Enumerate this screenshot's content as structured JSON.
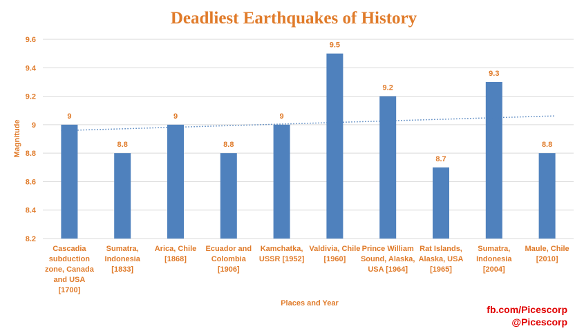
{
  "colors": {
    "accent": "#e07b2a",
    "bar": "#4f81bd",
    "trendline": "#4f81bd",
    "gridline": "#d9d9d9",
    "credit": "#e00000"
  },
  "credits": [
    "fb.com/Picescorp",
    "@Picescorp"
  ],
  "chart_data": {
    "type": "bar",
    "title": "Deadliest Earthquakes of History",
    "xlabel": "Places and Year",
    "ylabel": "Magnitude",
    "ylim": [
      8.2,
      9.6
    ],
    "yticks": [
      "8.2",
      "8.4",
      "8.6",
      "8.8",
      "9",
      "9.2",
      "9.4",
      "9.6"
    ],
    "grid": true,
    "trendline": "linear",
    "categories": [
      [
        "Cascadia",
        "subduction",
        "zone, Canada",
        "and USA",
        "[1700]"
      ],
      [
        "Sumatra,",
        "Indonesia",
        "[1833]"
      ],
      [
        "Arica, Chile",
        "[1868]"
      ],
      [
        "Ecuador and",
        "Colombia",
        "[1906]"
      ],
      [
        "Kamchatka,",
        "USSR [1952]"
      ],
      [
        "Valdivia, Chile",
        "[1960]"
      ],
      [
        "Prince William",
        "Sound, Alaska,",
        "USA [1964]"
      ],
      [
        "Rat Islands,",
        "Alaska, USA",
        "[1965]"
      ],
      [
        "Sumatra,",
        "Indonesia",
        "[2004]"
      ],
      [
        "Maule, Chile",
        "[2010]"
      ]
    ],
    "values": [
      9,
      8.8,
      9,
      8.8,
      9,
      9.5,
      9.2,
      8.7,
      9.3,
      8.8
    ],
    "data_labels": [
      "9",
      "8.8",
      "9",
      "8.8",
      "9",
      "9.5",
      "9.2",
      "8.7",
      "9.3",
      "8.8"
    ]
  }
}
